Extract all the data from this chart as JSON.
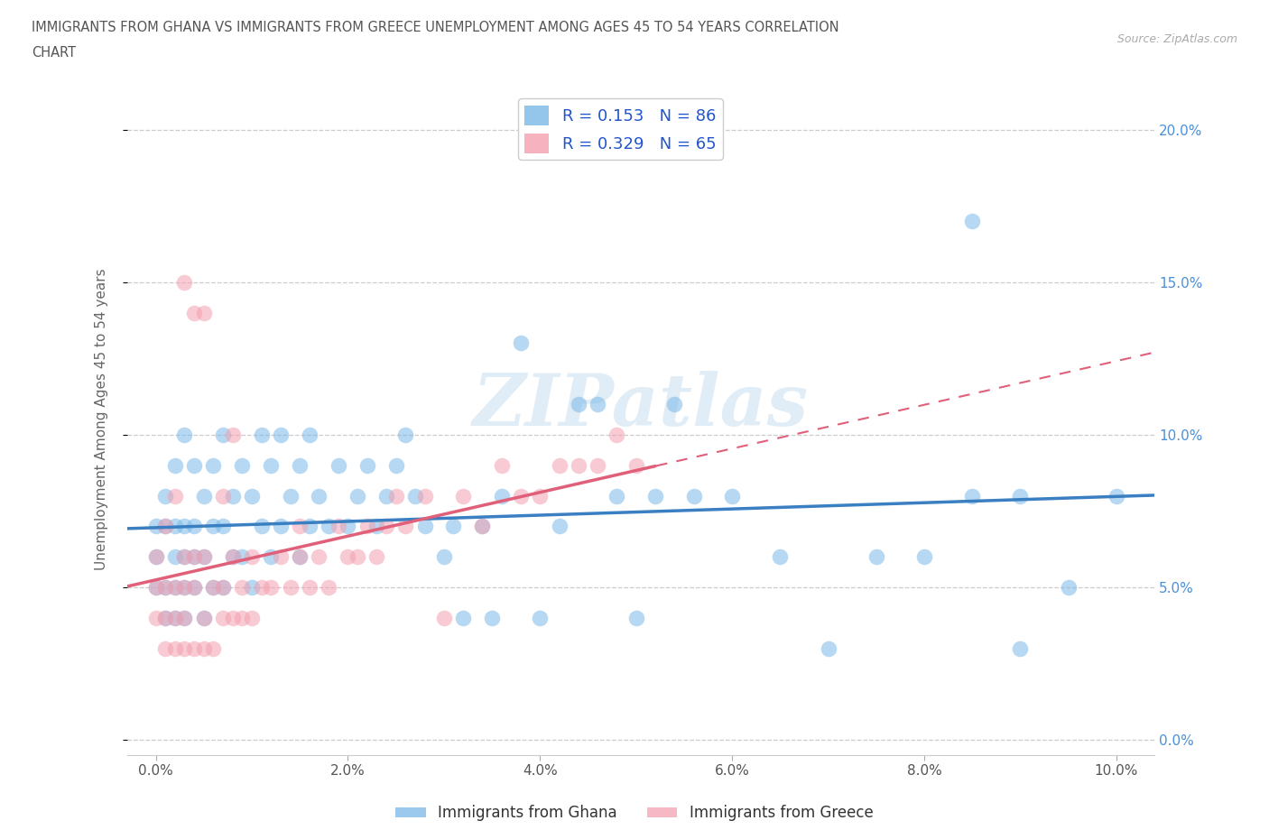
{
  "title_line1": "IMMIGRANTS FROM GHANA VS IMMIGRANTS FROM GREECE UNEMPLOYMENT AMONG AGES 45 TO 54 YEARS CORRELATION",
  "title_line2": "CHART",
  "source": "Source: ZipAtlas.com",
  "ylabel": "Unemployment Among Ages 45 to 54 years",
  "x_ticks": [
    0.0,
    0.02,
    0.04,
    0.06,
    0.08,
    0.1
  ],
  "x_tick_labels": [
    "0.0%",
    "2.0%",
    "4.0%",
    "6.0%",
    "8.0%",
    "10.0%"
  ],
  "y_ticks": [
    0.0,
    0.05,
    0.1,
    0.15,
    0.2
  ],
  "y_tick_labels_right": [
    "0.0%",
    "5.0%",
    "10.0%",
    "15.0%",
    "20.0%"
  ],
  "xlim": [
    -0.003,
    0.104
  ],
  "ylim": [
    -0.005,
    0.215
  ],
  "ghana_color": "#7ab8e8",
  "greece_color": "#f4a0b0",
  "ghana_line_color": "#3a7fc1",
  "greece_line_color": "#e0607a",
  "ghana_R": 0.153,
  "ghana_N": 86,
  "greece_R": 0.329,
  "greece_N": 65,
  "legend_label_ghana": "Immigrants from Ghana",
  "legend_label_greece": "Immigrants from Greece",
  "ghana_scatter_x": [
    0.0,
    0.0,
    0.0,
    0.001,
    0.001,
    0.001,
    0.001,
    0.002,
    0.002,
    0.002,
    0.002,
    0.002,
    0.003,
    0.003,
    0.003,
    0.003,
    0.003,
    0.004,
    0.004,
    0.004,
    0.004,
    0.005,
    0.005,
    0.005,
    0.006,
    0.006,
    0.006,
    0.007,
    0.007,
    0.007,
    0.008,
    0.008,
    0.009,
    0.009,
    0.01,
    0.01,
    0.011,
    0.011,
    0.012,
    0.012,
    0.013,
    0.013,
    0.014,
    0.015,
    0.015,
    0.016,
    0.016,
    0.017,
    0.018,
    0.019,
    0.02,
    0.021,
    0.022,
    0.023,
    0.024,
    0.025,
    0.026,
    0.027,
    0.028,
    0.03,
    0.031,
    0.032,
    0.034,
    0.035,
    0.036,
    0.038,
    0.04,
    0.042,
    0.044,
    0.046,
    0.048,
    0.05,
    0.052,
    0.054,
    0.056,
    0.06,
    0.065,
    0.07,
    0.075,
    0.08,
    0.085,
    0.09,
    0.095,
    0.1,
    0.085,
    0.09
  ],
  "ghana_scatter_y": [
    0.05,
    0.06,
    0.07,
    0.04,
    0.05,
    0.07,
    0.08,
    0.04,
    0.05,
    0.06,
    0.07,
    0.09,
    0.04,
    0.05,
    0.06,
    0.07,
    0.1,
    0.05,
    0.06,
    0.07,
    0.09,
    0.04,
    0.06,
    0.08,
    0.05,
    0.07,
    0.09,
    0.05,
    0.07,
    0.1,
    0.06,
    0.08,
    0.06,
    0.09,
    0.05,
    0.08,
    0.07,
    0.1,
    0.06,
    0.09,
    0.07,
    0.1,
    0.08,
    0.06,
    0.09,
    0.07,
    0.1,
    0.08,
    0.07,
    0.09,
    0.07,
    0.08,
    0.09,
    0.07,
    0.08,
    0.09,
    0.1,
    0.08,
    0.07,
    0.06,
    0.07,
    0.04,
    0.07,
    0.04,
    0.08,
    0.13,
    0.04,
    0.07,
    0.11,
    0.11,
    0.08,
    0.04,
    0.08,
    0.11,
    0.08,
    0.08,
    0.06,
    0.03,
    0.06,
    0.06,
    0.08,
    0.08,
    0.05,
    0.08,
    0.17,
    0.03
  ],
  "greece_scatter_x": [
    0.0,
    0.0,
    0.0,
    0.001,
    0.001,
    0.001,
    0.001,
    0.002,
    0.002,
    0.002,
    0.002,
    0.003,
    0.003,
    0.003,
    0.003,
    0.004,
    0.004,
    0.004,
    0.005,
    0.005,
    0.005,
    0.006,
    0.006,
    0.007,
    0.007,
    0.007,
    0.008,
    0.008,
    0.009,
    0.009,
    0.01,
    0.01,
    0.011,
    0.012,
    0.013,
    0.014,
    0.015,
    0.015,
    0.016,
    0.017,
    0.018,
    0.019,
    0.02,
    0.021,
    0.022,
    0.023,
    0.024,
    0.025,
    0.026,
    0.028,
    0.03,
    0.032,
    0.034,
    0.036,
    0.038,
    0.04,
    0.042,
    0.044,
    0.046,
    0.048,
    0.05,
    0.003,
    0.004,
    0.005,
    0.008
  ],
  "greece_scatter_y": [
    0.04,
    0.05,
    0.06,
    0.03,
    0.04,
    0.05,
    0.07,
    0.03,
    0.04,
    0.05,
    0.08,
    0.03,
    0.04,
    0.05,
    0.06,
    0.03,
    0.05,
    0.06,
    0.03,
    0.04,
    0.06,
    0.03,
    0.05,
    0.04,
    0.05,
    0.08,
    0.04,
    0.06,
    0.04,
    0.05,
    0.04,
    0.06,
    0.05,
    0.05,
    0.06,
    0.05,
    0.06,
    0.07,
    0.05,
    0.06,
    0.05,
    0.07,
    0.06,
    0.06,
    0.07,
    0.06,
    0.07,
    0.08,
    0.07,
    0.08,
    0.04,
    0.08,
    0.07,
    0.09,
    0.08,
    0.08,
    0.09,
    0.09,
    0.09,
    0.1,
    0.09,
    0.15,
    0.14,
    0.14,
    0.1
  ]
}
